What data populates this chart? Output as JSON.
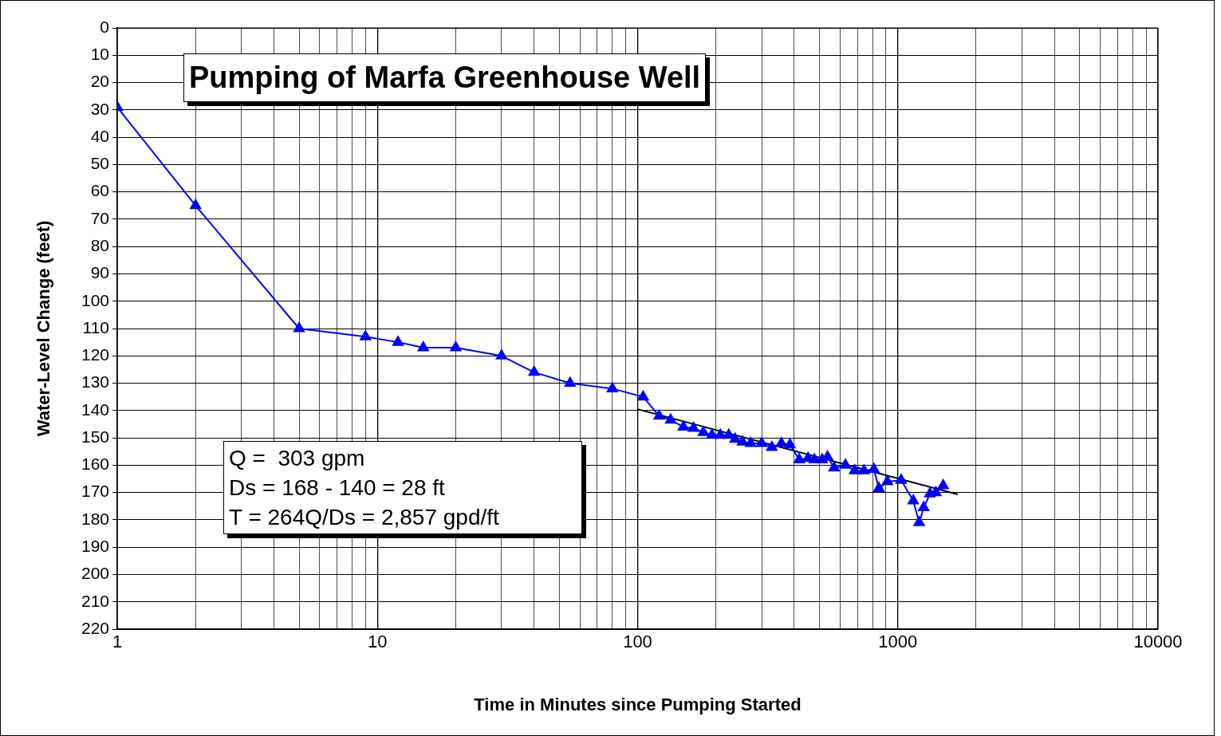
{
  "chart_data": {
    "type": "line",
    "title": "Pumping of Marfa Greenhouse Well",
    "xlabel": "Time in Minutes since Pumping Started",
    "ylabel": "Water-Level Change (feet)",
    "log": "x",
    "grid": true,
    "legend": false,
    "xlim": [
      1,
      10000
    ],
    "ylim": [
      220,
      0
    ],
    "xticks": [
      1,
      {
        "value": 2,
        "label": null
      },
      {
        "value": 3,
        "label": null
      },
      {
        "value": 4,
        "label": null
      },
      {
        "value": 5,
        "label": null
      },
      {
        "value": 6,
        "label": null
      },
      {
        "value": 7,
        "label": null
      },
      {
        "value": 8,
        "label": null
      },
      {
        "value": 9,
        "label": null
      },
      10,
      {
        "value": 20,
        "label": null
      },
      {
        "value": 30,
        "label": null
      },
      {
        "value": 40,
        "label": null
      },
      {
        "value": 50,
        "label": null
      },
      {
        "value": 60,
        "label": null
      },
      {
        "value": 70,
        "label": null
      },
      {
        "value": 80,
        "label": null
      },
      {
        "value": 90,
        "label": null
      },
      100,
      {
        "value": 200,
        "label": null
      },
      {
        "value": 300,
        "label": null
      },
      {
        "value": 400,
        "label": null
      },
      {
        "value": 500,
        "label": null
      },
      {
        "value": 600,
        "label": null
      },
      {
        "value": 700,
        "label": null
      },
      {
        "value": 800,
        "label": null
      },
      {
        "value": 900,
        "label": null
      },
      1000,
      {
        "value": 2000,
        "label": null
      },
      {
        "value": 3000,
        "label": null
      },
      {
        "value": 4000,
        "label": null
      },
      {
        "value": 5000,
        "label": null
      },
      {
        "value": 6000,
        "label": null
      },
      {
        "value": 7000,
        "label": null
      },
      {
        "value": 8000,
        "label": null
      },
      {
        "value": 9000,
        "label": null
      },
      10000
    ],
    "yticks": [
      0,
      10,
      20,
      30,
      40,
      50,
      60,
      70,
      80,
      90,
      100,
      110,
      120,
      130,
      140,
      150,
      160,
      170,
      180,
      190,
      200,
      210,
      220
    ],
    "series": [
      {
        "type": "line",
        "color": "#0000ff",
        "marker": "triangle",
        "line_style": "solid",
        "x": [
          1,
          2,
          5,
          9,
          12,
          15,
          20,
          30,
          40,
          55,
          80,
          105,
          121,
          134,
          150,
          164,
          179,
          193,
          208,
          224,
          237,
          253,
          272,
          300,
          328,
          357,
          385,
          418,
          452,
          478,
          512,
          537,
          569,
          629,
          683,
          742,
          809,
          846,
          912,
          1030,
          1147,
          1208,
          1258,
          1329,
          1400,
          1494
        ],
        "values": [
          29,
          65,
          110,
          113,
          115,
          117,
          117,
          120,
          126,
          130,
          132,
          135,
          142,
          143.5,
          146,
          146.5,
          148,
          149,
          149,
          149,
          150.5,
          151.5,
          152,
          152,
          153.5,
          152,
          152.5,
          158,
          157.5,
          158,
          158,
          157,
          161,
          160,
          162,
          162,
          161.5,
          168.5,
          166,
          165.5,
          173,
          181,
          175.5,
          170.5,
          170,
          167.5
        ]
      },
      {
        "type": "line",
        "color": "#000000",
        "marker": "none",
        "line_style": "solid",
        "x": [
          100,
          1700
        ],
        "values": [
          139.5,
          170.7
        ]
      }
    ],
    "annotations": [
      "Q =  303 gpm",
      "Ds = 168 - 140 = 28 ft",
      "T = 264Q/Ds = 2,857 gpd/ft"
    ]
  }
}
